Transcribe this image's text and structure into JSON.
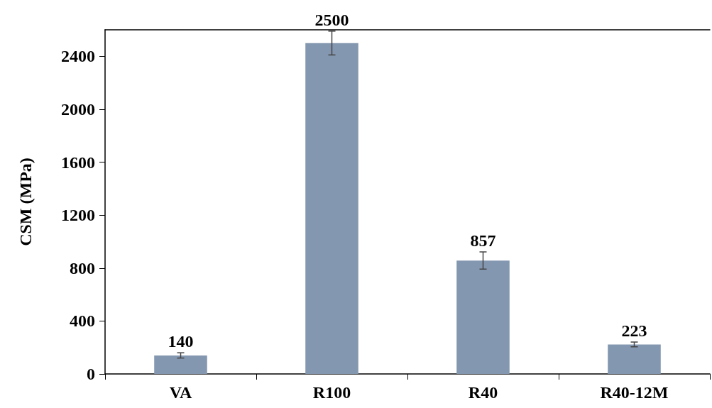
{
  "chart_data": {
    "type": "bar",
    "ylabel": "CSM (MPa)",
    "categories": [
      "VA",
      "R100",
      "R40",
      "R40-12M"
    ],
    "values": [
      140,
      2500,
      857,
      223
    ],
    "color": "#8497b0",
    "errors": [
      20,
      90,
      65,
      18
    ],
    "ylim": [
      0,
      2600
    ],
    "yticks": [
      0,
      400,
      800,
      1200,
      1600,
      2000,
      2400
    ],
    "grid": false,
    "data_labels": true
  }
}
